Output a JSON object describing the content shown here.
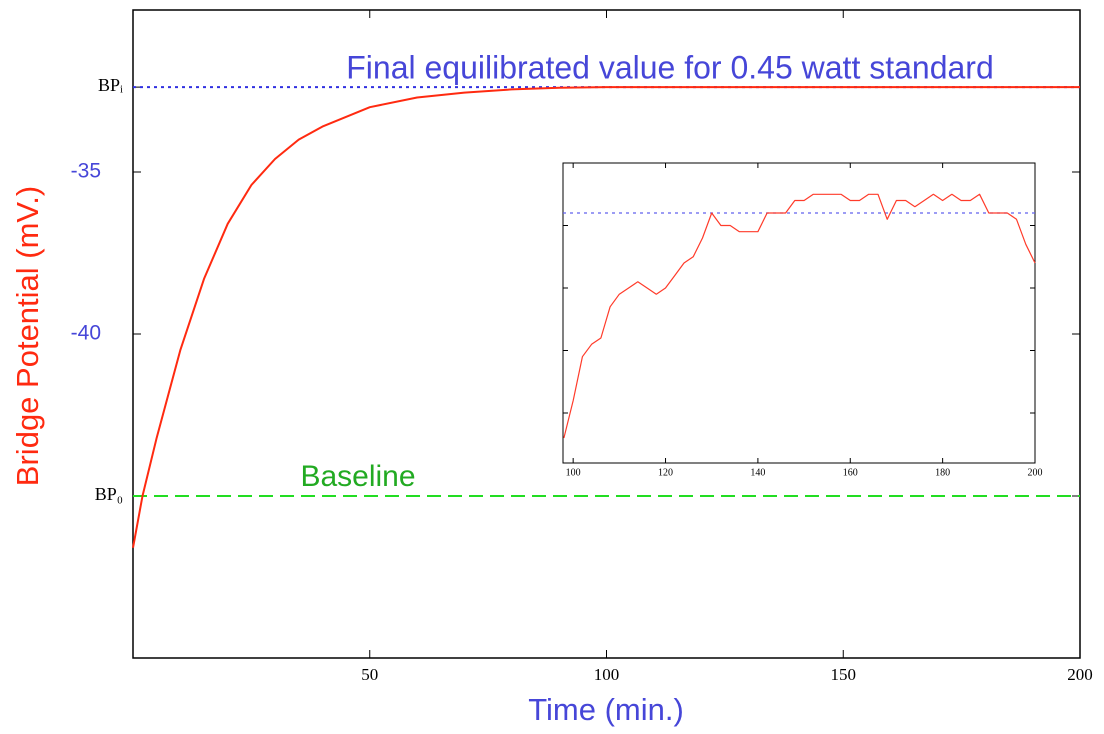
{
  "chart_data": [
    {
      "type": "line",
      "x_label": "Time (min.)",
      "y_label": "Bridge Potential (mV.)",
      "xlim": [
        0,
        200
      ],
      "xticks": [
        50,
        100,
        150,
        200
      ],
      "ylim": [
        -50,
        -30
      ],
      "yticks": [
        {
          "value": -32.38,
          "label": "BPᵢ"
        },
        -35,
        -40,
        {
          "value": -45,
          "label": "BP₀"
        }
      ],
      "x": [
        0,
        2,
        5,
        10,
        15,
        20,
        25,
        30,
        35,
        40,
        50,
        60,
        70,
        80,
        90,
        100,
        150,
        200
      ],
      "values": [
        -46.6,
        -45.0,
        -43.2,
        -40.5,
        -38.3,
        -36.6,
        -35.4,
        -34.6,
        -34.0,
        -33.6,
        -33.0,
        -32.7,
        -32.55,
        -32.45,
        -32.4,
        -32.38,
        -32.38,
        -32.38
      ],
      "color": "#ff2a10",
      "hlines": [
        {
          "value": -32.38,
          "color": "#3030e0",
          "style": "dotted"
        },
        {
          "value": -45,
          "color": "#22dd22",
          "style": "dashed"
        }
      ],
      "annotations": [
        {
          "text": "Final equilibrated value for 0.45 watt standard",
          "color": "#4646d8"
        },
        {
          "text": "Baseline",
          "color": "#22aa22"
        }
      ]
    },
    {
      "type": "line",
      "xlim": [
        97.8,
        200
      ],
      "xticks": [
        100,
        120,
        140,
        160,
        180,
        200
      ],
      "ylim": [
        -32.78,
        -32.3
      ],
      "yticks": [
        -32.4,
        -32.5,
        -32.6,
        -32.7
      ],
      "x": [
        98,
        100,
        102,
        104,
        106,
        108,
        110,
        112,
        114,
        116,
        118,
        120,
        122,
        124,
        126,
        128,
        130,
        132,
        134,
        136,
        138,
        140,
        142,
        144,
        146,
        148,
        150,
        152,
        154,
        156,
        158,
        160,
        162,
        164,
        166,
        168,
        170,
        172,
        174,
        176,
        178,
        180,
        182,
        184,
        186,
        188,
        190,
        192,
        194,
        196,
        198,
        200
      ],
      "values": [
        -32.74,
        -32.68,
        -32.61,
        -32.59,
        -32.58,
        -32.53,
        -32.51,
        -32.5,
        -32.49,
        -32.5,
        -32.51,
        -32.5,
        -32.48,
        -32.46,
        -32.45,
        -32.42,
        -32.38,
        -32.4,
        -32.4,
        -32.41,
        -32.41,
        -32.41,
        -32.38,
        -32.38,
        -32.38,
        -32.36,
        -32.36,
        -32.35,
        -32.35,
        -32.35,
        -32.35,
        -32.36,
        -32.36,
        -32.35,
        -32.35,
        -32.39,
        -32.36,
        -32.36,
        -32.37,
        -32.36,
        -32.35,
        -32.36,
        -32.35,
        -32.36,
        -32.36,
        -32.35,
        -32.38,
        -32.38,
        -32.38,
        -32.39,
        -32.43,
        -32.46
      ],
      "color": "#ff3b2a",
      "hlines": [
        {
          "value": -32.38,
          "color": "#6060ee",
          "style": "dotted"
        }
      ]
    }
  ]
}
